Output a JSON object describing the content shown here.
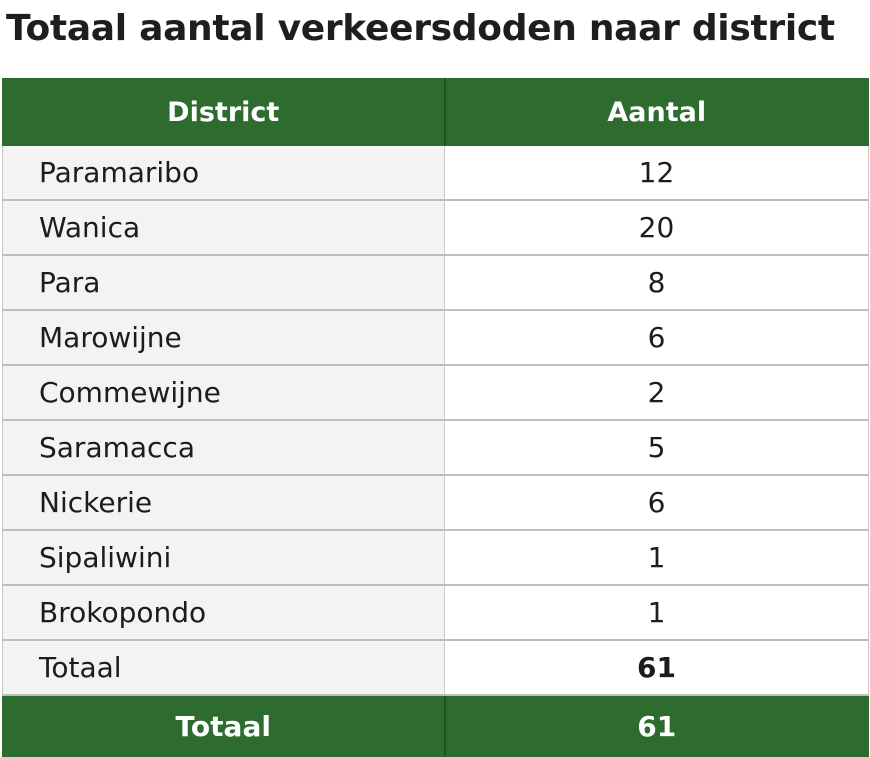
{
  "title": "Totaal aantal verkeersdoden naar district",
  "table": {
    "headers": [
      "District",
      "Aantal"
    ],
    "rows": [
      {
        "district": "Paramaribo",
        "aantal": "12"
      },
      {
        "district": "Wanica",
        "aantal": "20"
      },
      {
        "district": "Para",
        "aantal": "8"
      },
      {
        "district": "Marowijne",
        "aantal": "6"
      },
      {
        "district": "Commewijne",
        "aantal": "2"
      },
      {
        "district": "Saramacca",
        "aantal": "5"
      },
      {
        "district": "Nickerie",
        "aantal": "6"
      },
      {
        "district": "Sipaliwini",
        "aantal": "1"
      },
      {
        "district": "Brokopondo",
        "aantal": "1"
      }
    ],
    "subtotal": {
      "label": "Totaal",
      "value": "61"
    },
    "footer": {
      "label": "Totaal",
      "value": "61"
    }
  },
  "colors": {
    "header_green": "#2e6b2f",
    "name_cell_bg": "#f3f3f3",
    "grid": "#c8c8c8"
  }
}
